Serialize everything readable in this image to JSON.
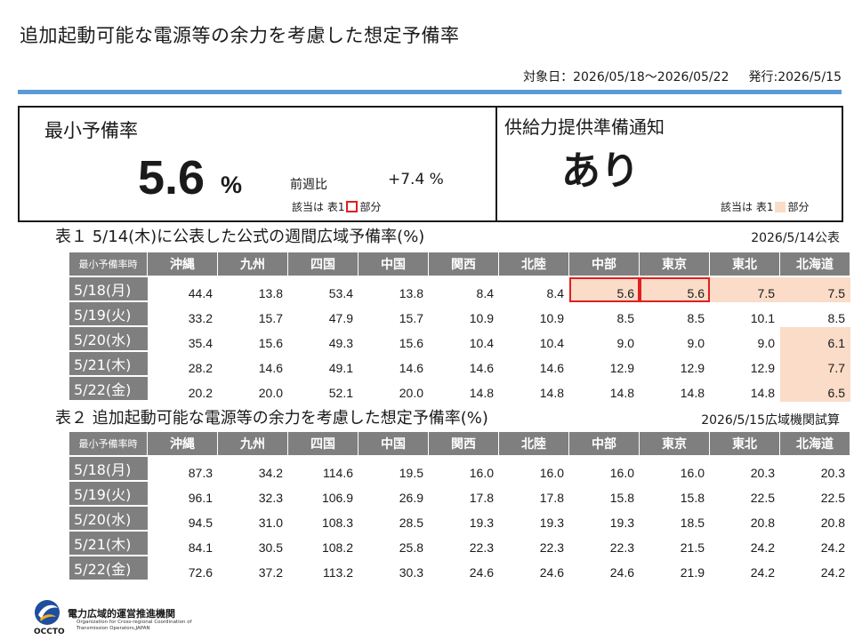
{
  "header": {
    "title": "追加起動可能な電源等の余力を考慮した想定予備率",
    "period": "対象日：2026/05/18〜2026/05/22",
    "issued": "発行:2026/5/15"
  },
  "summary": {
    "min_label": "最小予備率",
    "min_value": "5.6",
    "min_unit": "%",
    "wow_label": "前週比",
    "wow_value": "+7.4 %",
    "note_left_prefix": "該当は 表1",
    "note_left_suffix": "部分",
    "notice_label": "供給力提供準備通知",
    "notice_value": "あり",
    "note_right_prefix": "該当は 表1",
    "note_right_suffix": "部分"
  },
  "columns": [
    "沖縄",
    "九州",
    "四国",
    "中国",
    "関西",
    "北陸",
    "中部",
    "東京",
    "東北",
    "北海道"
  ],
  "table1": {
    "title": "表１ 5/14(木)に公表した公式の週間広域予備率(%)",
    "date": "2026/5/14公表",
    "corner": "最小予備率時",
    "rows": [
      {
        "day": "5/18(月)",
        "values": [
          "44.4",
          "13.8",
          "53.4",
          "13.8",
          "8.4",
          "8.4",
          "5.6",
          "5.6",
          "7.5",
          "7.5"
        ]
      },
      {
        "day": "5/19(火)",
        "values": [
          "33.2",
          "15.7",
          "47.9",
          "15.7",
          "10.9",
          "10.9",
          "8.5",
          "8.5",
          "10.1",
          "8.5"
        ]
      },
      {
        "day": "5/20(水)",
        "values": [
          "35.4",
          "15.6",
          "49.3",
          "15.6",
          "10.4",
          "10.4",
          "9.0",
          "9.0",
          "9.0",
          "6.1"
        ]
      },
      {
        "day": "5/21(木)",
        "values": [
          "28.2",
          "14.6",
          "49.1",
          "14.6",
          "14.6",
          "14.6",
          "12.9",
          "12.9",
          "12.9",
          "7.7"
        ]
      },
      {
        "day": "5/22(金)",
        "values": [
          "20.2",
          "20.0",
          "52.1",
          "20.0",
          "14.8",
          "14.8",
          "14.8",
          "14.8",
          "14.8",
          "6.5"
        ]
      }
    ]
  },
  "table2": {
    "title": "表２ 追加起動可能な電源等の余力を考慮した想定予備率(%)",
    "date": "2026/5/15広域機関試算",
    "corner": "最小予備率時",
    "rows": [
      {
        "day": "5/18(月)",
        "values": [
          "87.3",
          "34.2",
          "114.6",
          "19.5",
          "16.0",
          "16.0",
          "16.0",
          "16.0",
          "20.3",
          "20.3"
        ]
      },
      {
        "day": "5/19(火)",
        "values": [
          "96.1",
          "32.3",
          "106.9",
          "26.9",
          "17.8",
          "17.8",
          "15.8",
          "15.8",
          "22.5",
          "22.5"
        ]
      },
      {
        "day": "5/20(水)",
        "values": [
          "94.5",
          "31.0",
          "108.3",
          "28.5",
          "19.3",
          "19.3",
          "19.3",
          "18.5",
          "20.8",
          "20.8"
        ]
      },
      {
        "day": "5/21(木)",
        "values": [
          "84.1",
          "30.5",
          "108.2",
          "25.8",
          "22.3",
          "22.3",
          "22.3",
          "21.5",
          "24.2",
          "24.2"
        ]
      },
      {
        "day": "5/22(金)",
        "values": [
          "72.6",
          "37.2",
          "113.2",
          "30.3",
          "24.6",
          "24.6",
          "24.6",
          "21.9",
          "24.2",
          "24.2"
        ]
      }
    ]
  },
  "footer": {
    "org_name": "電力広域的運営推進機関",
    "org_sub_1": "Organization for Cross-regional Coordination of",
    "org_sub_2": "Transmission Operators,JAPAN",
    "abbr": "OCCTO"
  }
}
